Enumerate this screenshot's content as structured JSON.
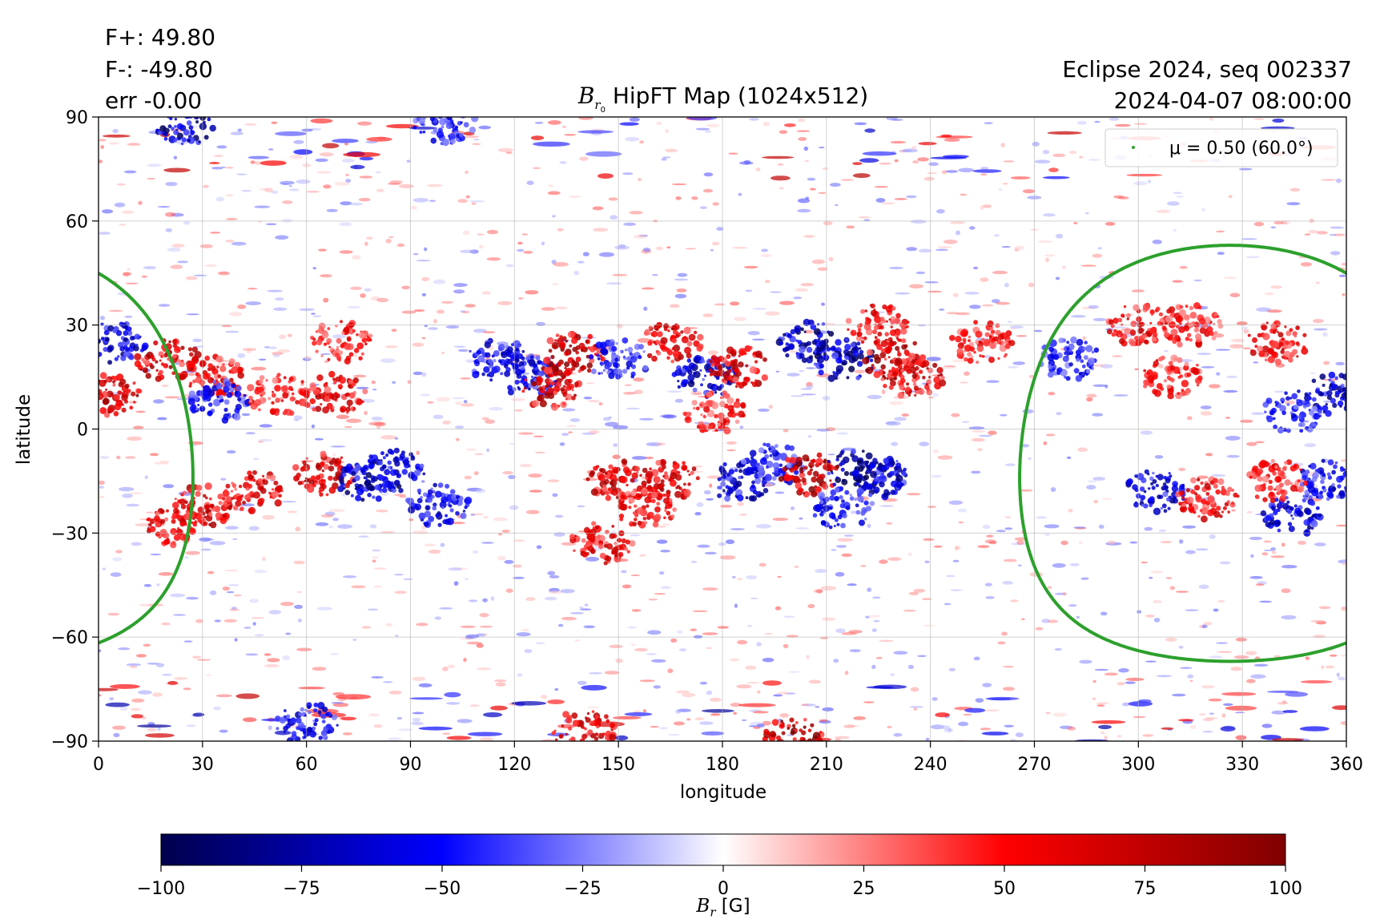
{
  "header": {
    "flux_pos": "F+: 49.80",
    "flux_neg": "F-: -49.80",
    "error": "err -0.00",
    "title_symbol": "B",
    "title_sub": "r",
    "title_subsub": "0",
    "title_text": " HipFT Map (1024x512)",
    "run_name": "Eclipse 2024, seq 002337",
    "datetime": "2024-04-07 08:00:00"
  },
  "chart_data": {
    "type": "heatmap",
    "map_type": "Carrington radial magnetic field map",
    "xlabel": "longitude",
    "ylabel": "latitude",
    "xlim": [
      0,
      360
    ],
    "ylim": [
      -90,
      90
    ],
    "xticks": [
      "0",
      "30",
      "60",
      "90",
      "120",
      "150",
      "180",
      "210",
      "240",
      "270",
      "300",
      "330",
      "360"
    ],
    "yticks": [
      "90",
      "60",
      "30",
      "0",
      "−30",
      "−60",
      "−90"
    ],
    "grid": true,
    "colormap": "seismic",
    "colorbar": {
      "label_symbol": "B",
      "label_sub": "r",
      "label_unit": " [G]",
      "range": [
        -100,
        100
      ],
      "ticks": [
        "−100",
        "−75",
        "−50",
        "−25",
        "0",
        "25",
        "50",
        "75",
        "100"
      ],
      "colors": [
        "#00004c",
        "#0000ff",
        "#ffffff",
        "#ff0000",
        "#800000"
      ]
    },
    "legend": {
      "placement": "top-right",
      "entries": [
        {
          "label": "μ = 0.50 (60.0°)",
          "color": "#2ca02c"
        }
      ]
    },
    "contour": {
      "name": "μ = 0.50 (60.0°)",
      "color": "#2ca02c",
      "center_lon": 326.5,
      "center_lat": -7,
      "angular_radius_deg": 60
    },
    "active_regions": [
      {
        "lon": 5,
        "lat": 25,
        "flux": -80
      },
      {
        "lon": 3,
        "lat": 10,
        "flux": 90
      },
      {
        "lon": 20,
        "lat": 20,
        "flux": 80
      },
      {
        "lon": 33,
        "lat": 15,
        "flux": 70
      },
      {
        "lon": 35,
        "lat": 8,
        "flux": -60
      },
      {
        "lon": 52,
        "lat": 10,
        "flux": 60
      },
      {
        "lon": 68,
        "lat": 10,
        "flux": 70
      },
      {
        "lon": 70,
        "lat": 25,
        "flux": 60
      },
      {
        "lon": 30,
        "lat": -22,
        "flux": 80
      },
      {
        "lon": 45,
        "lat": -18,
        "flux": 70
      },
      {
        "lon": 22,
        "lat": -28,
        "flux": 70
      },
      {
        "lon": 65,
        "lat": -13,
        "flux": 80
      },
      {
        "lon": 78,
        "lat": -15,
        "flux": -90
      },
      {
        "lon": 85,
        "lat": -12,
        "flux": -70
      },
      {
        "lon": 98,
        "lat": -22,
        "flux": -70
      },
      {
        "lon": 115,
        "lat": 20,
        "flux": -70
      },
      {
        "lon": 125,
        "lat": 15,
        "flux": -70
      },
      {
        "lon": 130,
        "lat": 12,
        "flux": 80
      },
      {
        "lon": 137,
        "lat": 22,
        "flux": 90
      },
      {
        "lon": 150,
        "lat": 20,
        "flux": -60
      },
      {
        "lon": 165,
        "lat": 25,
        "flux": 80
      },
      {
        "lon": 175,
        "lat": 15,
        "flux": -80
      },
      {
        "lon": 185,
        "lat": 18,
        "flux": 80
      },
      {
        "lon": 178,
        "lat": 5,
        "flux": 60
      },
      {
        "lon": 205,
        "lat": 25,
        "flux": -90
      },
      {
        "lon": 215,
        "lat": 20,
        "flux": -90
      },
      {
        "lon": 230,
        "lat": 20,
        "flux": 90
      },
      {
        "lon": 235,
        "lat": 15,
        "flux": 80
      },
      {
        "lon": 225,
        "lat": 30,
        "flux": 70
      },
      {
        "lon": 150,
        "lat": -15,
        "flux": 80
      },
      {
        "lon": 165,
        "lat": -15,
        "flux": 80
      },
      {
        "lon": 158,
        "lat": -23,
        "flux": 70
      },
      {
        "lon": 145,
        "lat": -33,
        "flux": 70
      },
      {
        "lon": 185,
        "lat": -15,
        "flux": -80
      },
      {
        "lon": 195,
        "lat": -10,
        "flux": -60
      },
      {
        "lon": 205,
        "lat": -13,
        "flux": 100
      },
      {
        "lon": 218,
        "lat": -12,
        "flux": -100
      },
      {
        "lon": 225,
        "lat": -14,
        "flux": -80
      },
      {
        "lon": 215,
        "lat": -23,
        "flux": -60
      },
      {
        "lon": 255,
        "lat": 25,
        "flux": 60
      },
      {
        "lon": 280,
        "lat": 20,
        "flux": -60
      },
      {
        "lon": 300,
        "lat": 30,
        "flux": 70
      },
      {
        "lon": 315,
        "lat": 30,
        "flux": 60
      },
      {
        "lon": 310,
        "lat": 15,
        "flux": 60
      },
      {
        "lon": 340,
        "lat": 25,
        "flux": 70
      },
      {
        "lon": 357,
        "lat": 10,
        "flux": -80
      },
      {
        "lon": 345,
        "lat": 5,
        "flux": -60
      },
      {
        "lon": 305,
        "lat": -18,
        "flux": -80
      },
      {
        "lon": 320,
        "lat": -20,
        "flux": 70
      },
      {
        "lon": 345,
        "lat": -25,
        "flux": -80
      },
      {
        "lon": 355,
        "lat": -15,
        "flux": -70
      },
      {
        "lon": 340,
        "lat": -15,
        "flux": 60
      },
      {
        "lon": 25,
        "lat": 88,
        "flux": -90
      },
      {
        "lon": 100,
        "lat": 88,
        "flux": -60
      },
      {
        "lon": 140,
        "lat": -87,
        "flux": 80
      },
      {
        "lon": 200,
        "lat": -89,
        "flux": 100
      },
      {
        "lon": 60,
        "lat": -85,
        "flux": -70
      }
    ]
  }
}
